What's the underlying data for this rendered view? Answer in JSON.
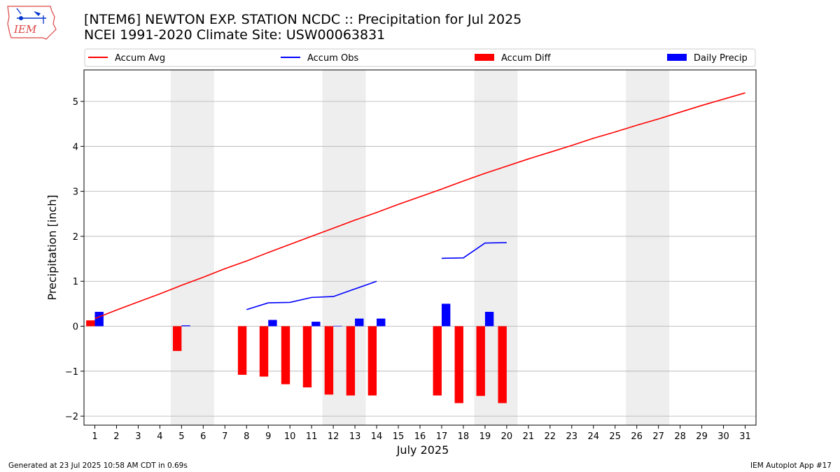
{
  "logo": {
    "text": "IEM",
    "icon": "iowa-state-logo-icon"
  },
  "title": {
    "line1": "[NTEM6] NEWTON EXP. STATION NCDC :: Precipitation for Jul 2025",
    "line2": "NCEI 1991-2020 Climate Site: USW00063831"
  },
  "footer": {
    "left": "Generated at 23 Jul 2025 10:58 AM CDT in 0.69s",
    "right": "IEM Autoplot App #17"
  },
  "colors": {
    "avg": "#ff0000",
    "obs": "#0000ff",
    "diff": "#ff0000",
    "daily": "#0000ff",
    "weekend": "#eeeeee",
    "grid": "#b0b0b0"
  },
  "chart_data": {
    "type": "bar",
    "xlabel": "July 2025",
    "ylabel": "Precipitation [inch]",
    "x": [
      1,
      2,
      3,
      4,
      5,
      6,
      7,
      8,
      9,
      10,
      11,
      12,
      13,
      14,
      15,
      16,
      17,
      18,
      19,
      20,
      21,
      22,
      23,
      24,
      25,
      26,
      27,
      28,
      29,
      30,
      31
    ],
    "xticklabels": [
      "1",
      "2",
      "3",
      "4",
      "5",
      "6",
      "7",
      "8",
      "9",
      "10",
      "11",
      "12",
      "13",
      "14",
      "15",
      "16",
      "17",
      "18",
      "19",
      "20",
      "21",
      "22",
      "23",
      "24",
      "25",
      "26",
      "27",
      "28",
      "29",
      "30",
      "31"
    ],
    "ylim": [
      -2.2,
      5.7
    ],
    "yticks": [
      -2,
      -1,
      0,
      1,
      2,
      3,
      4,
      5
    ],
    "yticklabels": [
      "−2",
      "−1",
      "0",
      "1",
      "2",
      "3",
      "4",
      "5"
    ],
    "grid": "horizontal",
    "legend_position": "top",
    "shaded_weekends": [
      [
        5,
        6
      ],
      [
        12,
        13
      ],
      [
        19,
        20
      ],
      [
        26,
        27
      ]
    ],
    "series": [
      {
        "name": "Accum Avg",
        "kind": "line",
        "values": [
          0.17,
          0.36,
          0.54,
          0.72,
          0.91,
          1.09,
          1.28,
          1.45,
          1.64,
          1.82,
          2.0,
          2.18,
          2.36,
          2.53,
          2.71,
          2.88,
          3.05,
          3.23,
          3.4,
          3.56,
          3.72,
          3.87,
          4.02,
          4.18,
          4.32,
          4.47,
          4.61,
          4.76,
          4.91,
          5.05,
          5.19
        ]
      },
      {
        "name": "Accum Obs",
        "kind": "line",
        "values": [
          null,
          null,
          null,
          null,
          null,
          null,
          null,
          0.37,
          0.52,
          0.53,
          0.64,
          0.66,
          0.83,
          1.0,
          null,
          null,
          1.51,
          1.52,
          1.85,
          1.86,
          null,
          null,
          null,
          null,
          null,
          null,
          null,
          null,
          null,
          null,
          null
        ]
      },
      {
        "name": "Accum Diff",
        "kind": "bar",
        "values": [
          0.13,
          null,
          null,
          null,
          -0.55,
          null,
          null,
          -1.08,
          -1.12,
          -1.29,
          -1.36,
          -1.52,
          -1.54,
          -1.54,
          null,
          null,
          -1.54,
          -1.71,
          -1.55,
          -1.71,
          null,
          null,
          null,
          null,
          null,
          null,
          null,
          null,
          null,
          null,
          null
        ]
      },
      {
        "name": "Daily Precip",
        "kind": "bar",
        "values": [
          0.32,
          null,
          null,
          null,
          0.02,
          null,
          null,
          0.0,
          0.14,
          0.0,
          0.1,
          0.01,
          0.17,
          0.17,
          null,
          null,
          0.5,
          0.0,
          0.32,
          0.0,
          null,
          null,
          null,
          null,
          null,
          null,
          null,
          null,
          null,
          null,
          null
        ]
      }
    ]
  }
}
